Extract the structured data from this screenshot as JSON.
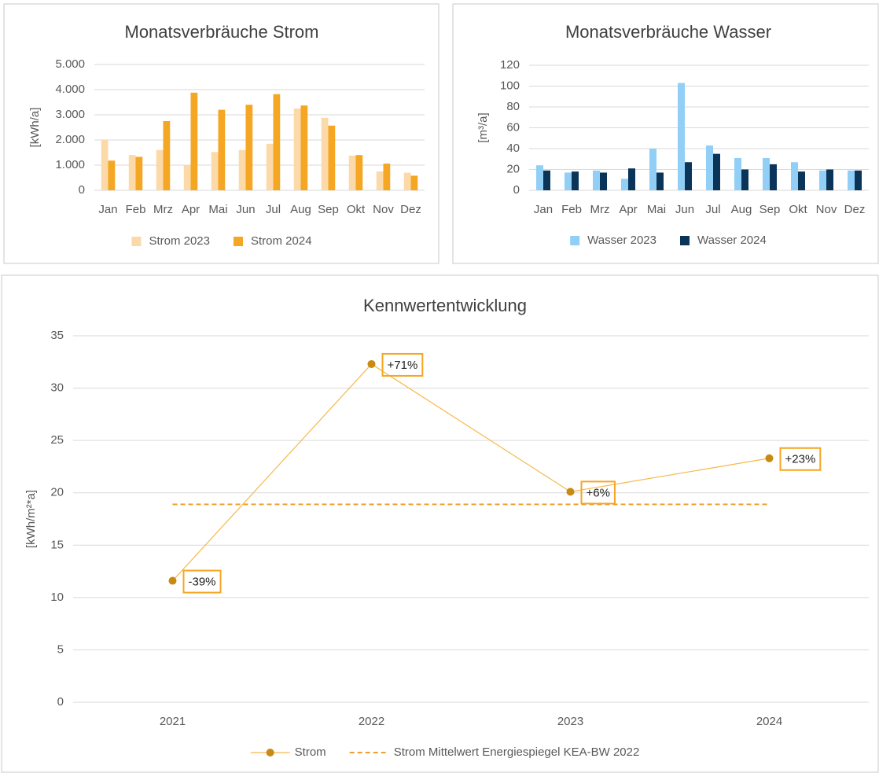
{
  "chart_data": [
    {
      "type": "bar",
      "title": "Monatsverbräuche Strom",
      "y_label": "[kWh/a]",
      "categories": [
        "Jan",
        "Feb",
        "Mrz",
        "Apr",
        "Mai",
        "Jun",
        "Jul",
        "Aug",
        "Sep",
        "Okt",
        "Nov",
        "Dez"
      ],
      "series": [
        {
          "name": "Strom 2023",
          "color": "#fbd9a8",
          "values": [
            2000,
            1400,
            1600,
            1000,
            1520,
            1600,
            1850,
            3250,
            2880,
            1380,
            750,
            700
          ]
        },
        {
          "name": "Strom 2024",
          "color": "#f5a623",
          "values": [
            1180,
            1330,
            2750,
            3880,
            3200,
            3400,
            3820,
            3370,
            2570,
            1400,
            1060,
            580
          ]
        }
      ],
      "ylim": [
        0,
        5000
      ],
      "yticks": [
        0,
        {
          "value": 1000,
          "label": "1.000"
        },
        {
          "value": 2000,
          "label": "2.000"
        },
        {
          "value": 3000,
          "label": "3.000"
        },
        {
          "value": 4000,
          "label": "4.000"
        },
        {
          "value": 5000,
          "label": "5.000"
        }
      ],
      "grid": true,
      "legend": "bottom"
    },
    {
      "type": "bar",
      "title": "Monatsverbräuche Wasser",
      "y_label": "[m³/a]",
      "categories": [
        "Jan",
        "Feb",
        "Mrz",
        "Apr",
        "Mai",
        "Jun",
        "Jul",
        "Aug",
        "Sep",
        "Okt",
        "Nov",
        "Dez"
      ],
      "series": [
        {
          "name": "Wasser 2023",
          "color": "#91cff7",
          "values": [
            24,
            17,
            19,
            11,
            40,
            103,
            43,
            31,
            31,
            27,
            19,
            19
          ]
        },
        {
          "name": "Wasser 2024",
          "color": "#0b3558",
          "values": [
            19,
            18,
            17,
            21,
            17,
            27,
            35,
            20,
            25,
            18,
            20,
            19
          ]
        }
      ],
      "ylim": [
        0,
        120
      ],
      "yticks": [
        0,
        20,
        40,
        60,
        80,
        100,
        120
      ],
      "grid": true,
      "legend": "bottom"
    },
    {
      "type": "line",
      "title": "Kennwertentwicklung",
      "y_label": "[kWh/m²*a]",
      "categories": [
        "2021",
        "2022",
        "2023",
        "2024"
      ],
      "series": [
        {
          "name": "Strom",
          "color": "#f5b94a",
          "marker_color": "#c98a14",
          "values": [
            11.6,
            32.3,
            20.1,
            23.3
          ],
          "annotations": [
            "-39%",
            "+71%",
            "+6%",
            "+23%"
          ]
        },
        {
          "name": "Strom Mittelwert Energiespiegel KEA-BW 2022",
          "color": "#f0a030",
          "dashed": true,
          "values": [
            18.9,
            18.9,
            18.9,
            18.9
          ]
        }
      ],
      "ylim": [
        0,
        35
      ],
      "yticks": [
        0,
        5,
        10,
        15,
        20,
        25,
        30,
        35
      ],
      "grid": true,
      "legend": "bottom"
    }
  ]
}
